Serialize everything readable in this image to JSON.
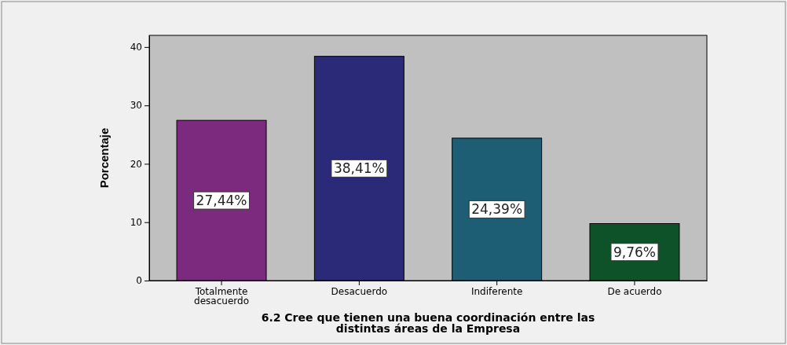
{
  "chart_data": {
    "type": "bar",
    "xlabel": "6.2 Cree que tienen una buena coordinación entre las distintas áreas de la Empresa",
    "ylabel": "Porcentaje",
    "categories": [
      "Totalmente desacuerdo",
      "Desacuerdo",
      "Indiferente",
      "De acuerdo"
    ],
    "values": [
      27.44,
      38.41,
      24.39,
      9.76
    ],
    "value_labels": [
      "27,44%",
      "38,41%",
      "24,39%",
      "9,76%"
    ],
    "colors": [
      "#7b2a7e",
      "#2b2a78",
      "#1d5e74",
      "#0e5229"
    ],
    "ylim": [
      0,
      42
    ],
    "yticks": [
      0,
      10,
      20,
      30,
      40
    ],
    "grid": false
  }
}
